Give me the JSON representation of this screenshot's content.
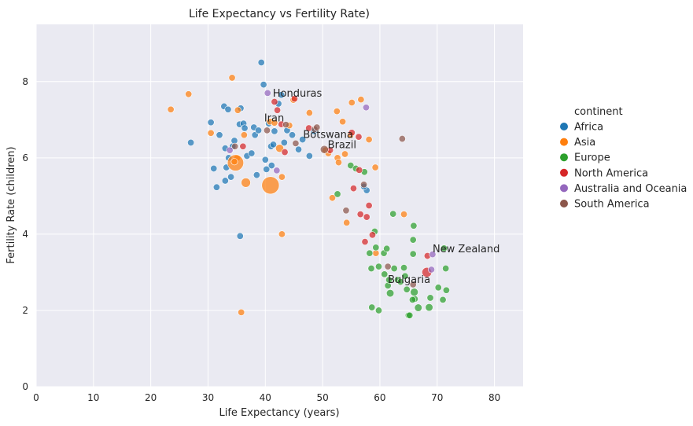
{
  "chart_data": {
    "type": "scatter",
    "title": "Life Expectancy vs Fertility Rate)",
    "xlabel": "Life Expectancy (years)",
    "ylabel": "Fertility Rate (children)",
    "xlim": [
      0,
      85
    ],
    "ylim": [
      0,
      9.5
    ],
    "xticks": [
      0,
      10,
      20,
      30,
      40,
      50,
      60,
      70,
      80
    ],
    "yticks": [
      0,
      2,
      4,
      6,
      8
    ],
    "grid": true,
    "legend_title": "continent",
    "legend_position": "right",
    "series": [
      {
        "name": "Africa",
        "color": "#1f77b4",
        "points": [
          [
            27,
            6.4,
            1
          ],
          [
            30.5,
            6.93,
            1
          ],
          [
            31,
            5.72,
            1
          ],
          [
            31.5,
            5.23,
            1
          ],
          [
            32,
            6.6,
            1
          ],
          [
            32.8,
            7.35,
            1
          ],
          [
            33.5,
            7.27,
            1
          ],
          [
            33,
            6.25,
            1
          ],
          [
            33.2,
            5.75,
            1
          ],
          [
            33.6,
            6.0,
            1
          ],
          [
            33,
            5.4,
            1
          ],
          [
            34,
            5.5,
            1
          ],
          [
            34.3,
            6.3,
            1
          ],
          [
            34.6,
            6.45,
            1
          ],
          [
            35.5,
            6.88,
            1
          ],
          [
            35.7,
            7.3,
            1
          ],
          [
            36.2,
            6.9,
            1
          ],
          [
            36.4,
            6.78,
            1
          ],
          [
            36.8,
            6.05,
            1
          ],
          [
            37.6,
            6.12,
            1
          ],
          [
            38,
            6.8,
            1
          ],
          [
            38.2,
            6.6,
            1
          ],
          [
            38.8,
            6.72,
            1
          ],
          [
            38.5,
            5.55,
            1
          ],
          [
            39.3,
            8.5,
            1
          ],
          [
            39.7,
            7.92,
            1
          ],
          [
            40.2,
            5.7,
            1
          ],
          [
            40,
            5.95,
            1
          ],
          [
            40.6,
            6.9,
            1
          ],
          [
            41,
            6.3,
            1
          ],
          [
            41.1,
            5.8,
            1
          ],
          [
            41.4,
            6.35,
            1
          ],
          [
            41.6,
            6.7,
            1
          ],
          [
            42.3,
            7.42,
            1
          ],
          [
            42.8,
            7.65,
            1
          ],
          [
            43.3,
            6.4,
            1
          ],
          [
            43.8,
            6.72,
            1
          ],
          [
            44.7,
            6.6,
            1
          ],
          [
            45.8,
            6.22,
            1
          ],
          [
            46.5,
            6.48,
            1
          ],
          [
            47.7,
            6.05,
            1
          ],
          [
            48.5,
            6.7,
            1
          ],
          [
            35.6,
            3.95,
            1
          ],
          [
            57.7,
            5.15,
            1
          ],
          [
            57.2,
            5.25,
            1
          ]
        ]
      },
      {
        "name": "Asia",
        "color": "#ff7f0e",
        "points": [
          [
            23.5,
            7.27,
            1
          ],
          [
            26.6,
            7.67,
            1
          ],
          [
            30.5,
            6.65,
            1
          ],
          [
            34.2,
            8.1,
            1
          ],
          [
            35.2,
            7.25,
            1
          ],
          [
            35.1,
            6.0,
            1
          ],
          [
            34.8,
            5.87,
            6
          ],
          [
            34.6,
            5.9,
            1
          ],
          [
            36.3,
            6.6,
            1
          ],
          [
            36.6,
            5.35,
            2
          ],
          [
            35.8,
            1.95,
            1
          ],
          [
            40.9,
            5.28,
            7
          ],
          [
            42.5,
            6.25,
            1.5
          ],
          [
            42.9,
            5.5,
            1
          ],
          [
            42.9,
            4.0,
            1
          ],
          [
            40.8,
            6.95,
            1
          ],
          [
            41.6,
            6.92,
            1
          ],
          [
            44.2,
            6.85,
            1
          ],
          [
            44.9,
            7.52,
            1
          ],
          [
            47.7,
            7.18,
            1
          ],
          [
            50.5,
            6.2,
            1
          ],
          [
            51,
            6.12,
            1
          ],
          [
            51.7,
            4.95,
            1
          ],
          [
            52.5,
            7.22,
            1
          ],
          [
            52.6,
            6.0,
            1
          ],
          [
            52.8,
            5.88,
            1
          ],
          [
            53.5,
            6.95,
            1
          ],
          [
            54.2,
            4.3,
            1
          ],
          [
            53.9,
            6.1,
            1
          ],
          [
            54.9,
            6.6,
            1
          ],
          [
            55.1,
            7.45,
            1
          ],
          [
            56.7,
            7.53,
            1
          ],
          [
            58.1,
            6.48,
            1
          ],
          [
            59.2,
            5.75,
            1
          ],
          [
            59.3,
            3.5,
            1
          ],
          [
            64.2,
            4.52,
            1
          ]
        ]
      },
      {
        "name": "Europe",
        "color": "#2ca02c",
        "points": [
          [
            52.6,
            5.05,
            1
          ],
          [
            54.9,
            5.8,
            1
          ],
          [
            55.8,
            5.72,
            1
          ],
          [
            57.3,
            5.63,
            1
          ],
          [
            58.2,
            3.5,
            1
          ],
          [
            58.5,
            3.1,
            1
          ],
          [
            58.6,
            2.08,
            1
          ],
          [
            59.1,
            4.07,
            1
          ],
          [
            59.3,
            3.65,
            1
          ],
          [
            60.7,
            3.5,
            1
          ],
          [
            59.8,
            2.0,
            1
          ],
          [
            59.8,
            3.15,
            1
          ],
          [
            60.8,
            2.95,
            1
          ],
          [
            61.2,
            3.62,
            1
          ],
          [
            61.4,
            2.65,
            1
          ],
          [
            61.8,
            2.45,
            1.3
          ],
          [
            62.3,
            4.53,
            1
          ],
          [
            62.5,
            3.1,
            1
          ],
          [
            63.1,
            2.8,
            1
          ],
          [
            63.6,
            2.75,
            1
          ],
          [
            64.2,
            3.12,
            1
          ],
          [
            64.4,
            2.9,
            1
          ],
          [
            64.7,
            2.55,
            1
          ],
          [
            65,
            1.87,
            1
          ],
          [
            65.2,
            1.87,
            1
          ],
          [
            65.8,
            3.85,
            1
          ],
          [
            65.9,
            4.22,
            1
          ],
          [
            66,
            2.48,
            1.4
          ],
          [
            66.1,
            2.3,
            1
          ],
          [
            65.7,
            2.28,
            1
          ],
          [
            65.8,
            3.48,
            1
          ],
          [
            66.7,
            2.07,
            1.3
          ],
          [
            68.6,
            2.08,
            1.3
          ],
          [
            68.8,
            2.33,
            1
          ],
          [
            70.2,
            2.6,
            1
          ],
          [
            71.2,
            3.63,
            1
          ],
          [
            71,
            2.28,
            1
          ],
          [
            71.6,
            2.53,
            1
          ],
          [
            71.5,
            3.1,
            1
          ],
          [
            61.6,
            2.8,
            1
          ]
        ]
      },
      {
        "name": "North America",
        "color": "#d62728",
        "points": [
          [
            36.1,
            6.3,
            1
          ],
          [
            41.6,
            7.47,
            1
          ],
          [
            42.1,
            7.25,
            1
          ],
          [
            42.8,
            6.88,
            1
          ],
          [
            43.4,
            6.15,
            1
          ],
          [
            45.1,
            7.55,
            1
          ],
          [
            47.6,
            6.78,
            1
          ],
          [
            51.3,
            6.2,
            1
          ],
          [
            55.1,
            6.66,
            1
          ],
          [
            55.4,
            5.2,
            1
          ],
          [
            56.4,
            5.68,
            1
          ],
          [
            56.3,
            6.55,
            1
          ],
          [
            56.6,
            4.52,
            1
          ],
          [
            57.4,
            3.8,
            1
          ],
          [
            57.7,
            4.45,
            1
          ],
          [
            58.1,
            4.75,
            1
          ],
          [
            58.7,
            3.98,
            1
          ],
          [
            68.2,
            3.0,
            2.2
          ],
          [
            68.3,
            3.43,
            1
          ]
        ]
      },
      {
        "name": "Australia and Oceania",
        "color": "#9467bd",
        "points": [
          [
            33.8,
            6.2,
            1
          ],
          [
            40.4,
            7.7,
            1
          ],
          [
            42,
            5.67,
            1
          ],
          [
            57.6,
            7.32,
            1
          ],
          [
            69,
            3.07,
            1
          ],
          [
            69.2,
            3.47,
            1
          ]
        ]
      },
      {
        "name": "South America",
        "color": "#8c564b",
        "points": [
          [
            34.7,
            6.3,
            1
          ],
          [
            40.3,
            6.72,
            1
          ],
          [
            43.6,
            6.87,
            1
          ],
          [
            45.3,
            6.38,
            1
          ],
          [
            48.6,
            6.75,
            1
          ],
          [
            49,
            6.8,
            1
          ],
          [
            50.3,
            6.22,
            1.5
          ],
          [
            54.1,
            4.62,
            1
          ],
          [
            57.2,
            5.3,
            1
          ],
          [
            61.4,
            3.15,
            1
          ],
          [
            63.9,
            6.5,
            1
          ],
          [
            65.8,
            2.68,
            1
          ]
        ]
      }
    ],
    "annotations": [
      {
        "text": "Honduras",
        "x": 41.3,
        "y": 7.6
      },
      {
        "text": "Iran",
        "x": 39.8,
        "y": 6.95
      },
      {
        "text": "Botswana",
        "x": 46.6,
        "y": 6.52
      },
      {
        "text": "Brazil",
        "x": 50.9,
        "y": 6.25
      },
      {
        "text": "New Zealand",
        "x": 69.2,
        "y": 3.52
      },
      {
        "text": "Bulgaria",
        "x": 61.4,
        "y": 2.72
      }
    ]
  }
}
